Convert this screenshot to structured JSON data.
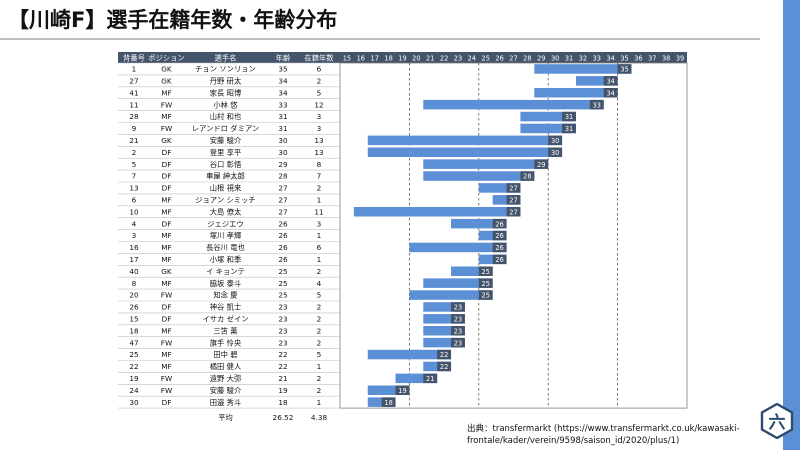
{
  "page": {
    "title": "【川崎F】選手在籍年数・年齢分布",
    "source_lines": [
      "出典：transfermarkt (https://www.transfermarkt.co.uk/kawasaki-",
      "frontale/kader/verein/9598/saison_id/2020/plus/1)"
    ],
    "logo_text": "六"
  },
  "table": {
    "headers": [
      "背番号",
      "ポジション",
      "選手名",
      "年齢",
      "在籍年数"
    ],
    "rows": [
      {
        "no": "1",
        "pos": "GK",
        "name": "チョン ソンリョン",
        "age": "35",
        "years": "6",
        "name_color": "#111111"
      },
      {
        "no": "27",
        "pos": "GK",
        "name": "丹野 研太",
        "age": "34",
        "years": "2",
        "name_color": "#111111"
      },
      {
        "no": "41",
        "pos": "MF",
        "name": "家長 昭博",
        "age": "34",
        "years": "5",
        "name_color": "#111111"
      },
      {
        "no": "11",
        "pos": "FW",
        "name": "小林 悠",
        "age": "33",
        "years": "12",
        "name_color": "#111111"
      },
      {
        "no": "28",
        "pos": "MF",
        "name": "山村 和也",
        "age": "31",
        "years": "3",
        "name_color": "#111111"
      },
      {
        "no": "9",
        "pos": "FW",
        "name": "レアンドロ ダミアン",
        "age": "31",
        "years": "3",
        "name_color": "#111111"
      },
      {
        "no": "21",
        "pos": "GK",
        "name": "安藤 駿介",
        "age": "30",
        "years": "13",
        "name_color": "#111111"
      },
      {
        "no": "2",
        "pos": "DF",
        "name": "登里 享平",
        "age": "30",
        "years": "13",
        "name_color": "#111111"
      },
      {
        "no": "5",
        "pos": "DF",
        "name": "谷口 彰悟",
        "age": "29",
        "years": "8",
        "name_color": "#111111"
      },
      {
        "no": "7",
        "pos": "DF",
        "name": "車屋 紳太郎",
        "age": "28",
        "years": "7",
        "name_color": "#111111"
      },
      {
        "no": "13",
        "pos": "DF",
        "name": "山根 視来",
        "age": "27",
        "years": "2",
        "name_color": "#111111"
      },
      {
        "no": "6",
        "pos": "MF",
        "name": "ジョアン シミッチ",
        "age": "27",
        "years": "1",
        "name_color": "#c97a2b"
      },
      {
        "no": "10",
        "pos": "MF",
        "name": "大島 僚太",
        "age": "27",
        "years": "11",
        "name_color": "#111111"
      },
      {
        "no": "4",
        "pos": "DF",
        "name": "ジェジエウ",
        "age": "26",
        "years": "3",
        "name_color": "#111111"
      },
      {
        "no": "3",
        "pos": "MF",
        "name": "塚川 孝輝",
        "age": "26",
        "years": "1",
        "name_color": "#c97a2b"
      },
      {
        "no": "16",
        "pos": "MF",
        "name": "長谷川 竜也",
        "age": "26",
        "years": "6",
        "name_color": "#111111"
      },
      {
        "no": "17",
        "pos": "MF",
        "name": "小塚 和季",
        "age": "26",
        "years": "1",
        "name_color": "#c97a2b"
      },
      {
        "no": "40",
        "pos": "GK",
        "name": "イ キョンテ",
        "age": "25",
        "years": "2",
        "name_color": "#111111"
      },
      {
        "no": "8",
        "pos": "MF",
        "name": "脇坂 泰斗",
        "age": "25",
        "years": "4",
        "name_color": "#111111"
      },
      {
        "no": "20",
        "pos": "FW",
        "name": "知念 慶",
        "age": "25",
        "years": "5",
        "name_color": "#111111"
      },
      {
        "no": "26",
        "pos": "DF",
        "name": "神谷 凱士",
        "age": "23",
        "years": "2",
        "name_color": "#111111"
      },
      {
        "no": "15",
        "pos": "DF",
        "name": "イサカ ゼイン",
        "age": "23",
        "years": "2",
        "name_color": "#111111"
      },
      {
        "no": "18",
        "pos": "MF",
        "name": "三笘 薫",
        "age": "23",
        "years": "2",
        "name_color": "#111111"
      },
      {
        "no": "47",
        "pos": "FW",
        "name": "旗手 怜央",
        "age": "23",
        "years": "2",
        "name_color": "#111111"
      },
      {
        "no": "25",
        "pos": "MF",
        "name": "田中 碧",
        "age": "22",
        "years": "5",
        "name_color": "#111111"
      },
      {
        "no": "22",
        "pos": "MF",
        "name": "橘田 健人",
        "age": "22",
        "years": "1",
        "name_color": "#c97a2b"
      },
      {
        "no": "19",
        "pos": "FW",
        "name": "遠野 大弥",
        "age": "21",
        "years": "2",
        "name_color": "#111111"
      },
      {
        "no": "24",
        "pos": "FW",
        "name": "安藤 駿介",
        "age": "19",
        "years": "2",
        "name_color": "#111111"
      },
      {
        "no": "30",
        "pos": "DF",
        "name": "田邉 秀斗",
        "age": "18",
        "years": "1",
        "name_color": "#c97a2b"
      }
    ],
    "average": {
      "label": "平均",
      "age": "26.52",
      "years": "4.38"
    }
  },
  "chart_data": {
    "type": "bar",
    "description_type": "horizontal-range",
    "x_ticks": [
      15,
      16,
      17,
      18,
      19,
      20,
      21,
      22,
      23,
      24,
      25,
      26,
      27,
      28,
      29,
      30,
      31,
      32,
      33,
      34,
      35,
      36,
      37,
      38,
      39
    ],
    "xlim": [
      15,
      39
    ],
    "dashed_gridlines_at": [
      20,
      25,
      30,
      35
    ],
    "bar_color": "#5b8fd6",
    "header_color": "#44546a",
    "bars": [
      {
        "age": 35,
        "years": 6
      },
      {
        "age": 34,
        "years": 2
      },
      {
        "age": 34,
        "years": 5
      },
      {
        "age": 33,
        "years": 12
      },
      {
        "age": 31,
        "years": 3
      },
      {
        "age": 31,
        "years": 3
      },
      {
        "age": 30,
        "years": 13
      },
      {
        "age": 30,
        "years": 13
      },
      {
        "age": 29,
        "years": 8
      },
      {
        "age": 28,
        "years": 7
      },
      {
        "age": 27,
        "years": 2
      },
      {
        "age": 27,
        "years": 1
      },
      {
        "age": 27,
        "years": 11
      },
      {
        "age": 26,
        "years": 3
      },
      {
        "age": 26,
        "years": 1
      },
      {
        "age": 26,
        "years": 6
      },
      {
        "age": 26,
        "years": 1
      },
      {
        "age": 25,
        "years": 2
      },
      {
        "age": 25,
        "years": 4
      },
      {
        "age": 25,
        "years": 5
      },
      {
        "age": 23,
        "years": 2
      },
      {
        "age": 23,
        "years": 2
      },
      {
        "age": 23,
        "years": 2
      },
      {
        "age": 23,
        "years": 2
      },
      {
        "age": 22,
        "years": 5
      },
      {
        "age": 22,
        "years": 1
      },
      {
        "age": 21,
        "years": 2
      },
      {
        "age": 19,
        "years": 2
      },
      {
        "age": 18,
        "years": 1
      }
    ]
  }
}
